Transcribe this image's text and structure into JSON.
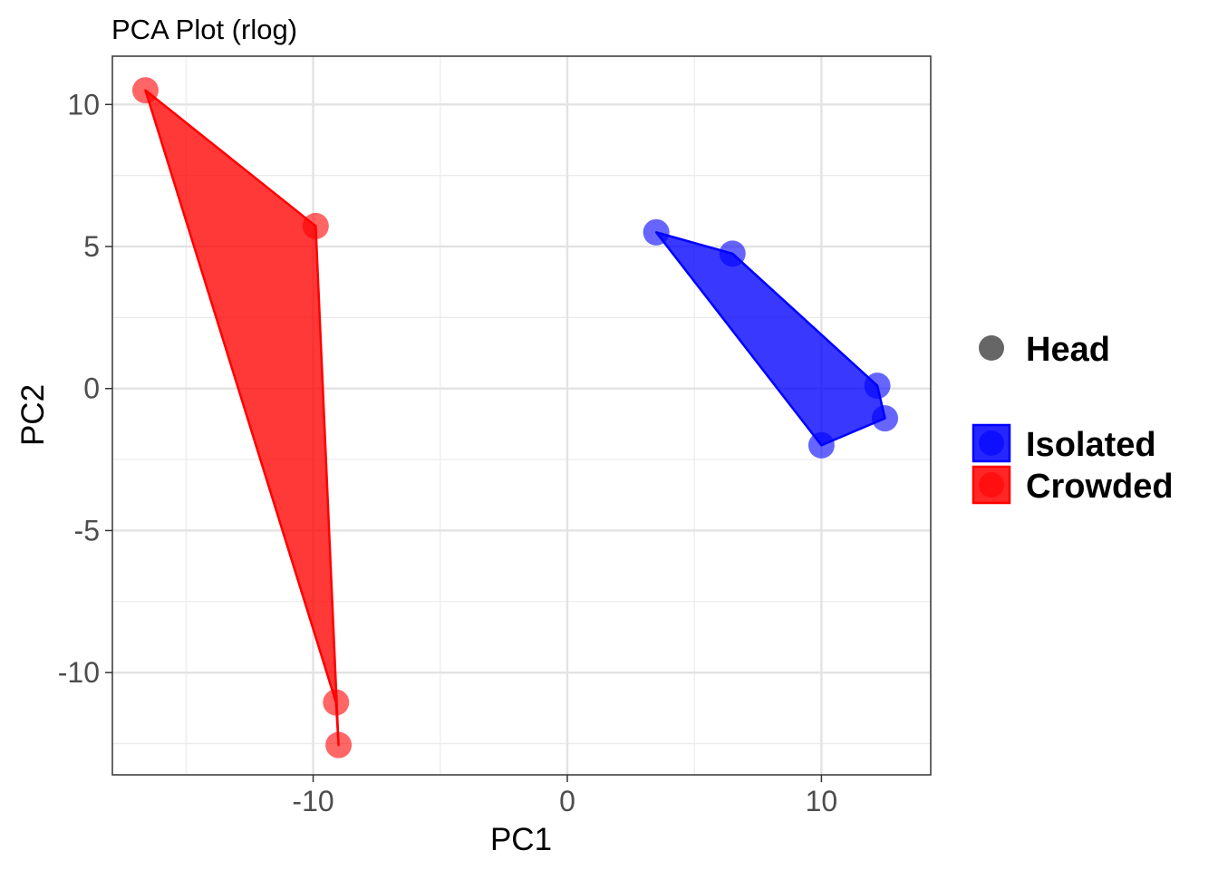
{
  "chart_data": {
    "type": "scatter",
    "title": "PCA Plot (rlog)",
    "xlabel": "PC1",
    "ylabel": "PC2",
    "xlim": [
      -17.9,
      14.3
    ],
    "ylim": [
      -13.6,
      11.7
    ],
    "x_ticks": [
      -10,
      0,
      10
    ],
    "x_tick_labels": [
      "-10",
      "0",
      "10"
    ],
    "y_ticks": [
      -10,
      -5,
      0,
      5,
      10
    ],
    "y_tick_labels": [
      "-10",
      "-5",
      "0",
      "5",
      "10"
    ],
    "grid": true,
    "shape_legend": {
      "label": "Head",
      "color": "#666666"
    },
    "series": [
      {
        "name": "Isolated",
        "color": "#0000ff",
        "points": [
          {
            "x": 3.5,
            "y": 5.5
          },
          {
            "x": 6.5,
            "y": 4.75
          },
          {
            "x": 12.2,
            "y": 0.1
          },
          {
            "x": 12.5,
            "y": -1.05
          },
          {
            "x": 10.0,
            "y": -2.0
          }
        ],
        "hull_order": [
          0,
          1,
          2,
          3,
          4
        ]
      },
      {
        "name": "Crowded",
        "color": "#ff0000",
        "points": [
          {
            "x": -16.6,
            "y": 10.5
          },
          {
            "x": -9.9,
            "y": 5.72
          },
          {
            "x": -9.1,
            "y": -11.05
          },
          {
            "x": -9.0,
            "y": -12.55
          }
        ],
        "hull_order": [
          0,
          1,
          3,
          2
        ]
      }
    ],
    "legend_position": "right"
  }
}
